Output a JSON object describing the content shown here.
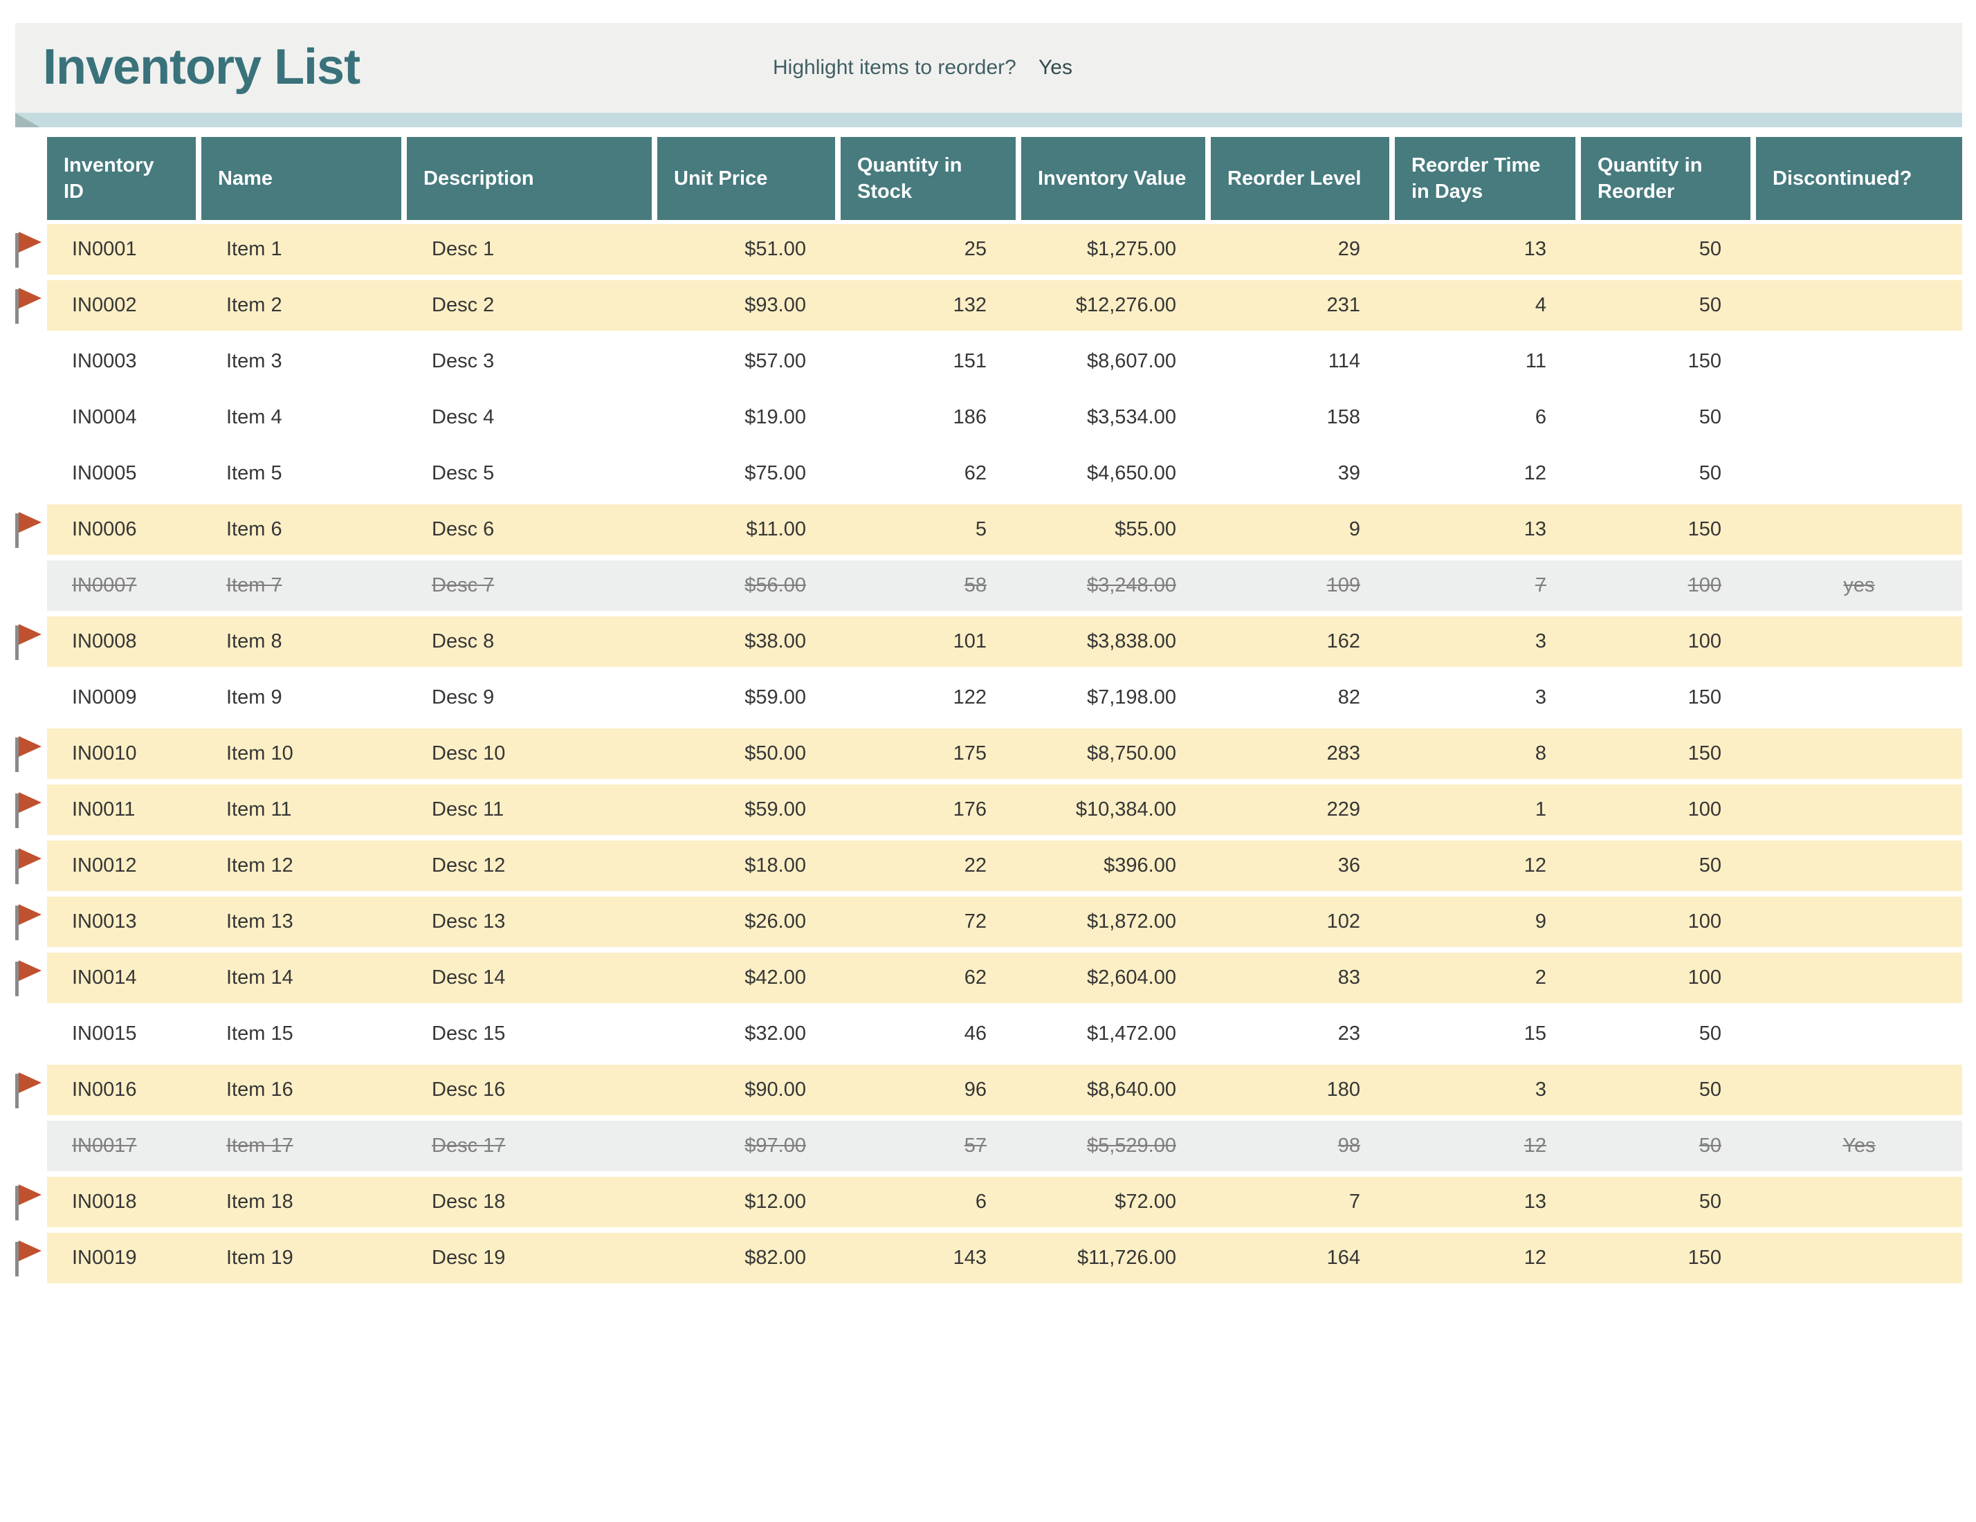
{
  "app": {
    "title": "Inventory List"
  },
  "toolbar": {
    "reorder_question": "Highlight items to reorder?",
    "reorder_value": "Yes"
  },
  "colors": {
    "title_teal": "#39727B",
    "header_teal": "#477B7E",
    "row_yellow": "#FCEFC5",
    "row_gray": "#EDEEEE",
    "ribbon_blue": "#C4DCDF",
    "ribbon_fold": "#A4B8B9",
    "flag_red": "#C0512F",
    "flag_pole": "#8A8A8A"
  },
  "icons": {
    "flag": "reorder-flag-icon"
  },
  "table": {
    "columns": [
      {
        "label": "Inventory ID",
        "align": "left"
      },
      {
        "label": "Name",
        "align": "left"
      },
      {
        "label": "Description",
        "align": "left"
      },
      {
        "label": "Unit Price",
        "align": "left"
      },
      {
        "label": "Quantity in Stock",
        "align": "left"
      },
      {
        "label": "Inventory Value",
        "align": "left"
      },
      {
        "label": "Reorder Level",
        "align": "left"
      },
      {
        "label": "Reorder Time in Days",
        "align": "left"
      },
      {
        "label": "Quantity in Reorder",
        "align": "left"
      },
      {
        "label": "Discontinued?",
        "align": "left"
      }
    ],
    "cell_aligns": [
      "left",
      "left",
      "left",
      "right",
      "right",
      "right",
      "right",
      "right",
      "right",
      "center"
    ],
    "rows": [
      {
        "state": "highlight",
        "flagged": true,
        "cells": [
          "IN0001",
          "Item 1",
          "Desc 1",
          "$51.00",
          "25",
          "$1,275.00",
          "29",
          "13",
          "50",
          ""
        ]
      },
      {
        "state": "highlight",
        "flagged": true,
        "cells": [
          "IN0002",
          "Item 2",
          "Desc 2",
          "$93.00",
          "132",
          "$12,276.00",
          "231",
          "4",
          "50",
          ""
        ]
      },
      {
        "state": "normal",
        "flagged": false,
        "cells": [
          "IN0003",
          "Item 3",
          "Desc 3",
          "$57.00",
          "151",
          "$8,607.00",
          "114",
          "11",
          "150",
          ""
        ]
      },
      {
        "state": "normal",
        "flagged": false,
        "cells": [
          "IN0004",
          "Item 4",
          "Desc 4",
          "$19.00",
          "186",
          "$3,534.00",
          "158",
          "6",
          "50",
          ""
        ]
      },
      {
        "state": "normal",
        "flagged": false,
        "cells": [
          "IN0005",
          "Item 5",
          "Desc 5",
          "$75.00",
          "62",
          "$4,650.00",
          "39",
          "12",
          "50",
          ""
        ]
      },
      {
        "state": "highlight",
        "flagged": true,
        "cells": [
          "IN0006",
          "Item 6",
          "Desc 6",
          "$11.00",
          "5",
          "$55.00",
          "9",
          "13",
          "150",
          ""
        ]
      },
      {
        "state": "discontinued",
        "flagged": false,
        "cells": [
          "IN0007",
          "Item 7",
          "Desc 7",
          "$56.00",
          "58",
          "$3,248.00",
          "109",
          "7",
          "100",
          "yes"
        ]
      },
      {
        "state": "highlight",
        "flagged": true,
        "cells": [
          "IN0008",
          "Item 8",
          "Desc 8",
          "$38.00",
          "101",
          "$3,838.00",
          "162",
          "3",
          "100",
          ""
        ]
      },
      {
        "state": "normal",
        "flagged": false,
        "cells": [
          "IN0009",
          "Item 9",
          "Desc 9",
          "$59.00",
          "122",
          "$7,198.00",
          "82",
          "3",
          "150",
          ""
        ]
      },
      {
        "state": "highlight",
        "flagged": true,
        "cells": [
          "IN0010",
          "Item 10",
          "Desc 10",
          "$50.00",
          "175",
          "$8,750.00",
          "283",
          "8",
          "150",
          ""
        ]
      },
      {
        "state": "highlight",
        "flagged": true,
        "cells": [
          "IN0011",
          "Item 11",
          "Desc 11",
          "$59.00",
          "176",
          "$10,384.00",
          "229",
          "1",
          "100",
          ""
        ]
      },
      {
        "state": "highlight",
        "flagged": true,
        "cells": [
          "IN0012",
          "Item 12",
          "Desc 12",
          "$18.00",
          "22",
          "$396.00",
          "36",
          "12",
          "50",
          ""
        ]
      },
      {
        "state": "highlight",
        "flagged": true,
        "cells": [
          "IN0013",
          "Item 13",
          "Desc 13",
          "$26.00",
          "72",
          "$1,872.00",
          "102",
          "9",
          "100",
          ""
        ]
      },
      {
        "state": "highlight",
        "flagged": true,
        "cells": [
          "IN0014",
          "Item 14",
          "Desc 14",
          "$42.00",
          "62",
          "$2,604.00",
          "83",
          "2",
          "100",
          ""
        ]
      },
      {
        "state": "normal",
        "flagged": false,
        "cells": [
          "IN0015",
          "Item 15",
          "Desc 15",
          "$32.00",
          "46",
          "$1,472.00",
          "23",
          "15",
          "50",
          ""
        ]
      },
      {
        "state": "highlight",
        "flagged": true,
        "cells": [
          "IN0016",
          "Item 16",
          "Desc 16",
          "$90.00",
          "96",
          "$8,640.00",
          "180",
          "3",
          "50",
          ""
        ]
      },
      {
        "state": "discontinued",
        "flagged": false,
        "cells": [
          "IN0017",
          "Item 17",
          "Desc 17",
          "$97.00",
          "57",
          "$5,529.00",
          "98",
          "12",
          "50",
          "Yes"
        ]
      },
      {
        "state": "highlight",
        "flagged": true,
        "cells": [
          "IN0018",
          "Item 18",
          "Desc 18",
          "$12.00",
          "6",
          "$72.00",
          "7",
          "13",
          "50",
          ""
        ]
      },
      {
        "state": "highlight",
        "flagged": true,
        "cells": [
          "IN0019",
          "Item 19",
          "Desc 19",
          "$82.00",
          "143",
          "$11,726.00",
          "164",
          "12",
          "150",
          ""
        ]
      }
    ]
  }
}
